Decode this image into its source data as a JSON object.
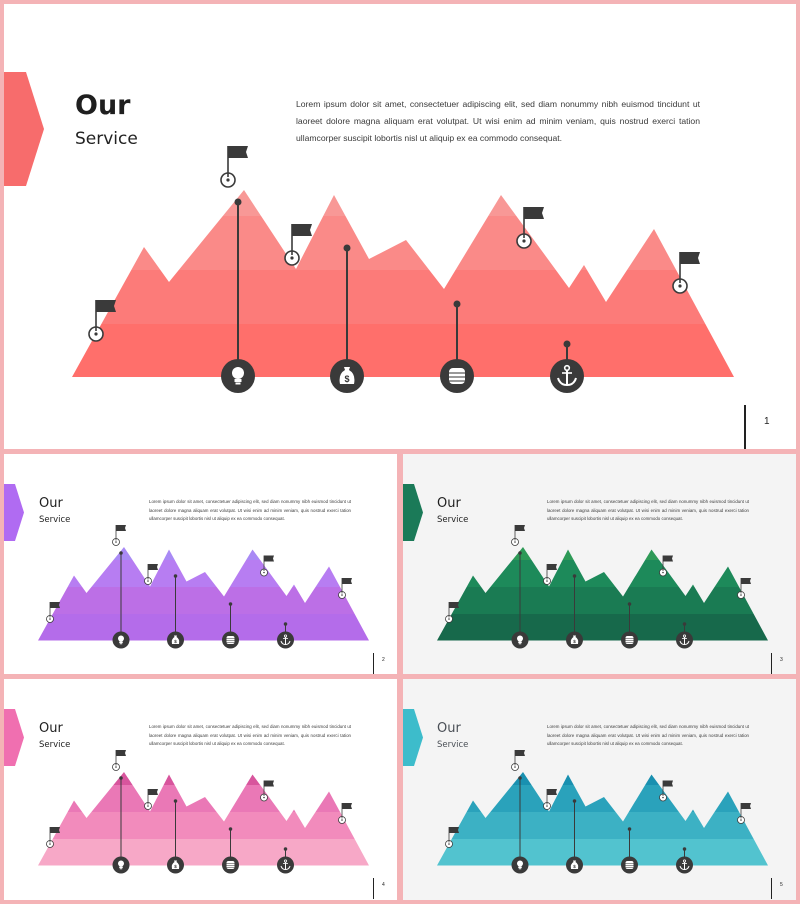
{
  "slides": [
    {
      "title": "Our",
      "subtitle": "Service",
      "body": "Lorem ipsum dolor sit amet, consectetuer adipiscing elit, sed diam nonummy nibh euismod tincidunt ut laoreet dolore magna aliquam erat volutpat. Ut wisi enim ad minim veniam, quis nostrud exerci tation ullamcorper suscipit lobortis nisl ut aliquip ex ea commodo consequat.",
      "page": "1",
      "colors": {
        "accent": "#f76c6c",
        "bands": [
          "#ff6f6b",
          "#fc7b79",
          "#fa8a88",
          "#f89896"
        ]
      }
    },
    {
      "title": "Our",
      "subtitle": "Service",
      "body": "Lorem ipsum dolor sit amet, consectetuer adipiscing elit, sed diam nonummy nibh euismod tincidunt ut laoreet dolore magna aliquam erat volutpat. Ut wisi enim ad minim veniam, quis nostrud exerci tation ullamcorper suscipit lobortis nisl ut aliquip ex ea commodo consequat.",
      "page": "2",
      "colors": {
        "accent": "#b06bf2",
        "bands": [
          "#b46cea",
          "#bc6fe6",
          "#b77df2",
          "#a98af5"
        ]
      }
    },
    {
      "title": "Our",
      "subtitle": "Service",
      "body": "Lorem ipsum dolor sit amet, consectetuer adipiscing elit, sed diam nonummy nibh euismod tincidunt ut laoreet dolore magna aliquam erat volutpat. Ut wisi enim ad minim veniam, quis nostrud exerci tation ullamcorper suscipit lobortis nisl ut aliquip ex ea commodo consequat.",
      "page": "3",
      "colors": {
        "accent": "#1b7a58",
        "bands": [
          "#17694b",
          "#1a7b53",
          "#1d8a5a",
          "#2e9a57"
        ]
      }
    },
    {
      "title": "Our",
      "subtitle": "Service",
      "body": "Lorem ipsum dolor sit amet, consectetuer adipiscing elit, sed diam nonummy nibh euismod tincidunt ut laoreet dolore magna aliquam erat volutpat. Ut wisi enim ad minim veniam, quis nostrud exerci tation ullamcorper suscipit lobortis nisl ut aliquip ex ea commodo consequat.",
      "page": "4",
      "colors": {
        "accent": "#f06fb0",
        "bands": [
          "#f7a8c7",
          "#f28bbc",
          "#ea78b6",
          "#d8559d"
        ]
      }
    },
    {
      "title": "Our",
      "subtitle": "Service",
      "body": "Lorem ipsum dolor sit amet, consectetuer adipiscing elit, sed diam nonummy nibh euismod tincidunt ut laoreet dolore magna aliquam erat volutpat. Ut wisi enim ad minim veniam, quis nostrud exerci tation ullamcorper suscipit lobortis nisl ut aliquip ex ea commodo consequat.",
      "page": "5",
      "colors": {
        "accent": "#3dbccb",
        "bands": [
          "#52c3cf",
          "#3cb1c4",
          "#2aa2bb",
          "#1990b0"
        ]
      }
    }
  ],
  "icons": [
    "lightbulb-icon",
    "money-bag-icon",
    "database-icon",
    "anchor-icon"
  ]
}
